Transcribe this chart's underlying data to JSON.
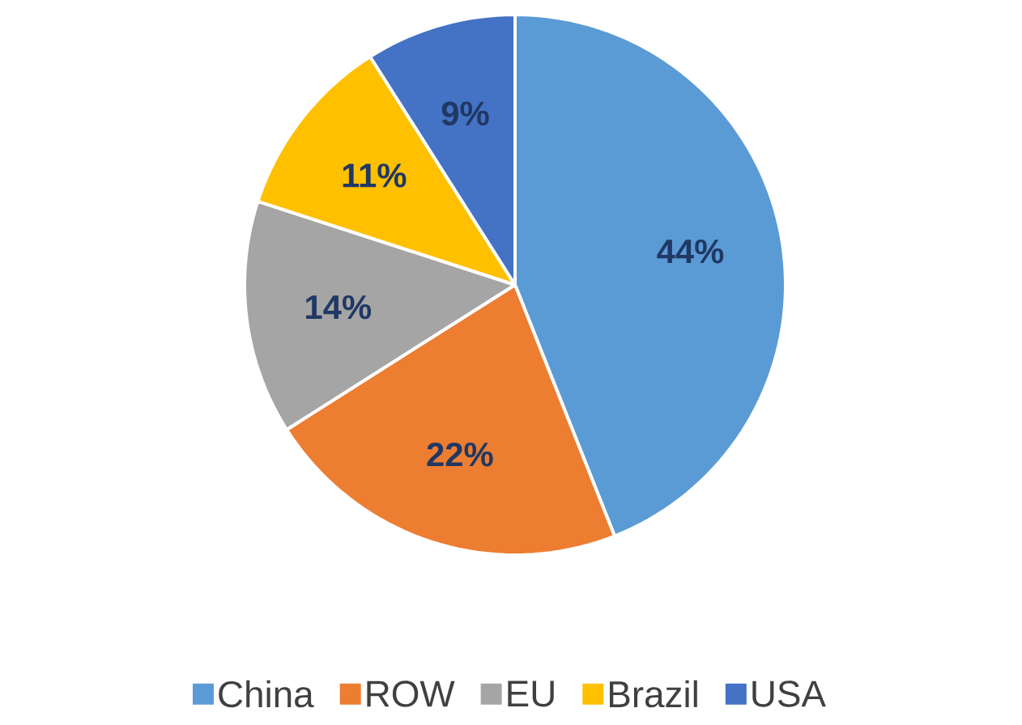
{
  "chart_data": {
    "type": "pie",
    "categories": [
      "China",
      "ROW",
      "EU",
      "Brazil",
      "USA"
    ],
    "values": [
      44,
      22,
      14,
      11,
      9
    ],
    "value_labels": [
      "44%",
      "22%",
      "14%",
      "11%",
      "9%"
    ],
    "colors": [
      "#5b9bd5",
      "#ed7d31",
      "#a5a5a5",
      "#ffc000",
      "#4472c4"
    ],
    "legend": "bottom"
  }
}
